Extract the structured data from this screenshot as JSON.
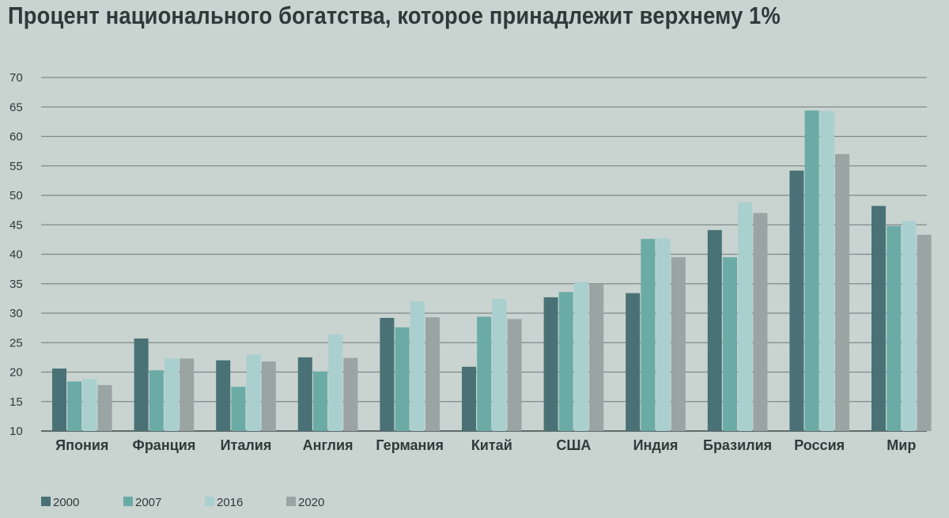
{
  "chart_data": {
    "type": "bar",
    "title": "Процент национального богатства, которое принадлежит верхнему 1%",
    "xlabel": "",
    "ylabel": "",
    "ylim": [
      10,
      70
    ],
    "yticks": [
      10,
      15,
      20,
      25,
      30,
      35,
      40,
      45,
      50,
      55,
      60,
      65,
      70
    ],
    "grid": true,
    "legend_position": "bottom-left",
    "categories": [
      "Япония",
      "Франция",
      "Италия",
      "Англия",
      "Германия",
      "Китай",
      "США",
      "Индия",
      "Бразилия",
      "Россия",
      "Мир"
    ],
    "series": [
      {
        "name": "2000",
        "color": "#4a7276",
        "values": [
          20.6,
          25.7,
          22.0,
          22.5,
          29.2,
          20.9,
          32.7,
          33.4,
          44.1,
          54.2,
          48.2
        ]
      },
      {
        "name": "2007",
        "color": "#6aaba6",
        "values": [
          18.4,
          20.3,
          17.5,
          20.1,
          27.6,
          29.4,
          33.6,
          42.6,
          39.5,
          64.4,
          44.8
        ]
      },
      {
        "name": "2016",
        "color": "#a9cfcf",
        "values": [
          18.8,
          22.3,
          23.0,
          26.4,
          32.0,
          32.4,
          35.3,
          42.7,
          48.8,
          64.3,
          45.6
        ]
      },
      {
        "name": "2020",
        "color": "#99a4a3",
        "values": [
          17.8,
          22.3,
          21.8,
          22.4,
          29.3,
          29.0,
          35.0,
          39.5,
          47.0,
          57.0,
          43.3
        ]
      }
    ]
  }
}
